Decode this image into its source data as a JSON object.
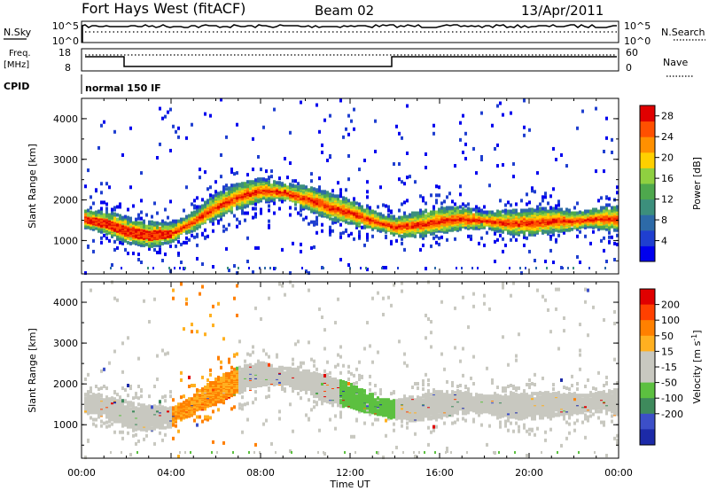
{
  "header": {
    "station": "Fort Hays West (fitACF)",
    "beam": "Beam 02",
    "date": "13/Apr/2011"
  },
  "status_panels": {
    "nsky": {
      "label": "N.Sky",
      "ticks": [
        "10^5",
        "10^0"
      ]
    },
    "nsearch": {
      "label": "N.Search",
      "ticks": [
        "10^5",
        "10^0"
      ]
    },
    "freq": {
      "label_line1": "Freq.",
      "label_line2": "[MHz]",
      "ticks": [
        "18",
        "8"
      ]
    },
    "nave": {
      "label": "Nave",
      "ticks": [
        "60",
        "0"
      ]
    },
    "cpid": {
      "label": "CPID",
      "value": "normal 150 IF"
    }
  },
  "colors": {
    "power_scale": [
      "#0000ee",
      "#1f3fd0",
      "#2d6aa8",
      "#3c8f7c",
      "#4ea84d",
      "#8fd040",
      "#ffd000",
      "#ff9000",
      "#ff5000",
      "#e00000"
    ],
    "velocity_scale": [
      "#1c2aa8",
      "#3c4fc8",
      "#3e8a5c",
      "#5cc040",
      "#c8c8c0",
      "#c8c8c0",
      "#ffb020",
      "#ff8000",
      "#ff4000",
      "#e00000"
    ]
  },
  "chart_data": [
    {
      "type": "heatmap",
      "name": "power",
      "xlabel": "Time UT",
      "ylabel": "Slant Range [km]",
      "x_ticks": [
        "00:00",
        "04:00",
        "08:00",
        "12:00",
        "16:00",
        "20:00",
        "00:00"
      ],
      "y_ticks": [
        1000,
        2000,
        3000,
        4000
      ],
      "xlim_hours": [
        0,
        24
      ],
      "ylim_km": [
        180,
        4500
      ],
      "colorbar": {
        "label": "Power [dB]",
        "ticks": [
          4,
          8,
          12,
          16,
          20,
          24,
          28
        ],
        "range": [
          0,
          30
        ]
      },
      "scatter_bands": [
        {
          "x": [
            0,
            1,
            2,
            3,
            4,
            5,
            6,
            7,
            8,
            9,
            10,
            11,
            12,
            13,
            14,
            15,
            16,
            17,
            18,
            19,
            20,
            21,
            22,
            23,
            24
          ],
          "center_km": [
            1550,
            1450,
            1250,
            1150,
            1200,
            1500,
            1850,
            2100,
            2250,
            2200,
            2050,
            1850,
            1700,
            1500,
            1350,
            1400,
            1500,
            1550,
            1500,
            1450,
            1450,
            1500,
            1500,
            1550,
            1550
          ]
        }
      ]
    },
    {
      "type": "heatmap",
      "name": "velocity",
      "xlabel": "Time UT",
      "ylabel": "Slant Range [km]",
      "x_ticks": [
        "00:00",
        "04:00",
        "08:00",
        "12:00",
        "16:00",
        "20:00",
        "00:00"
      ],
      "y_ticks": [
        1000,
        2000,
        3000,
        4000
      ],
      "xlim_hours": [
        0,
        24
      ],
      "ylim_km": [
        180,
        4500
      ],
      "colorbar": {
        "label": "Velocity [m s^-1]",
        "ticks": [
          200,
          100,
          50,
          15,
          -15,
          -50,
          -100,
          -200
        ],
        "range": [
          -250,
          250
        ]
      }
    }
  ]
}
